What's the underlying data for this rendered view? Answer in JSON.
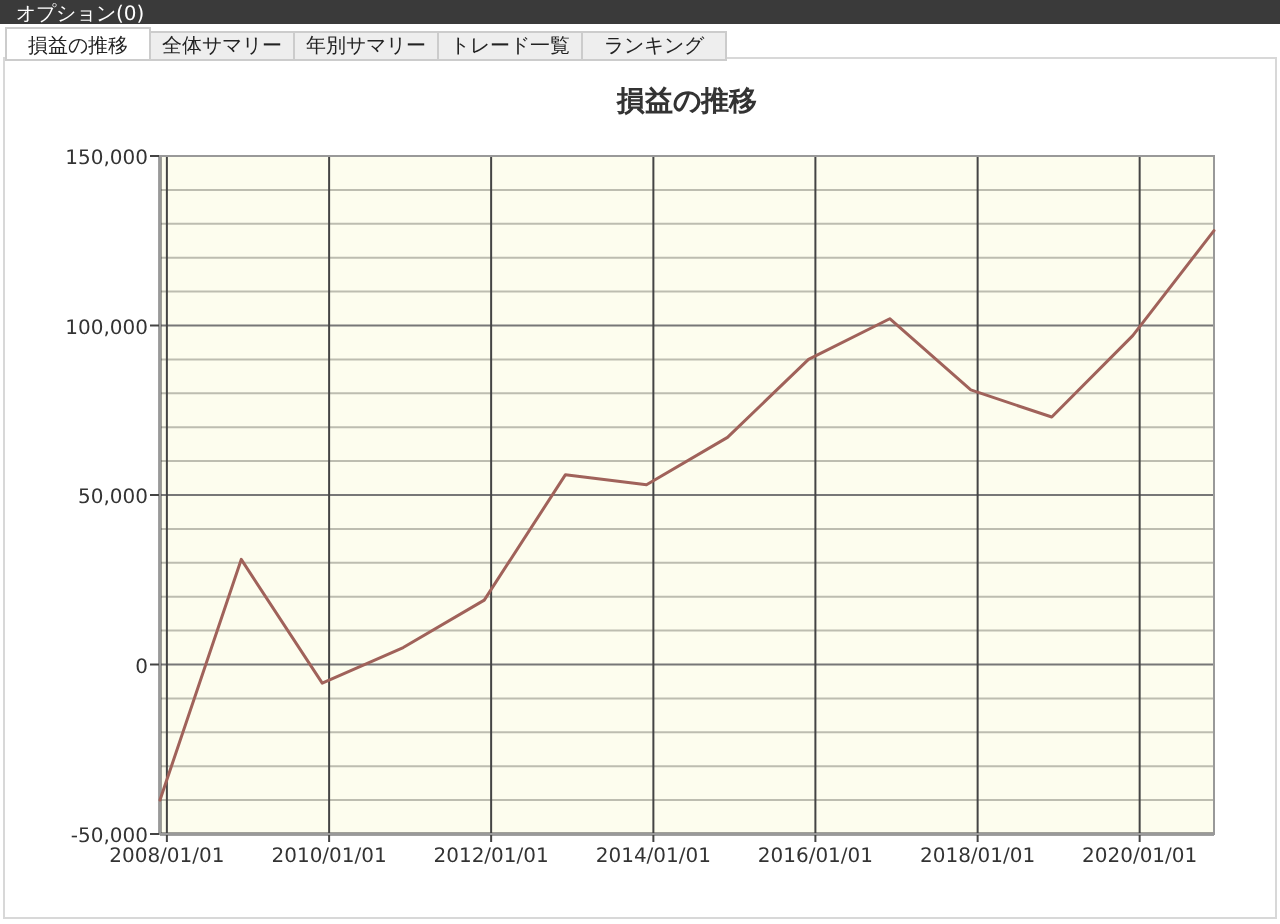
{
  "chart_data": {
    "type": "line",
    "title": "損益の推移",
    "annotations": [
      "オプション(0)",
      "損益の推移",
      "全体サマリー",
      "年別サマリー",
      "トレード一覧",
      "ランキング"
    ],
    "x": [
      "2007-12-01",
      "2008-12-01",
      "2009-12-01",
      "2010-12-01",
      "2011-12-01",
      "2012-12-01",
      "2013-12-01",
      "2014-12-01",
      "2015-12-01",
      "2016-12-01",
      "2017-12-01",
      "2018-12-01",
      "2019-12-01",
      "2020-12-01"
    ],
    "series": [
      {
        "color": "#a0625a",
        "values": [
          -40000,
          31000,
          -5500,
          5000,
          19000,
          56000,
          53000,
          67000,
          90000,
          102000,
          81000,
          73000,
          97000,
          128000
        ]
      }
    ],
    "xlim": [
      "2007-12-01",
      "2020-12-01"
    ],
    "xticks": [
      {
        "value": "2008-01-01",
        "label": "2008/01/01"
      },
      {
        "value": "2010-01-01",
        "label": "2010/01/01"
      },
      {
        "value": "2012-01-01",
        "label": "2012/01/01"
      },
      {
        "value": "2014-01-01",
        "label": "2014/01/01"
      },
      {
        "value": "2016-01-01",
        "label": "2016/01/01"
      },
      {
        "value": "2018-01-01",
        "label": "2018/01/01"
      },
      {
        "value": "2020-01-01",
        "label": "2020/01/01"
      }
    ],
    "ylim": [
      -50000,
      150000
    ],
    "yticks": [
      {
        "value": -50000,
        "label": "-50,000"
      },
      {
        "value": -40000,
        "label": null
      },
      {
        "value": -30000,
        "label": null
      },
      {
        "value": -20000,
        "label": null
      },
      {
        "value": -10000,
        "label": null
      },
      {
        "value": 0,
        "label": "0"
      },
      {
        "value": 10000,
        "label": null
      },
      {
        "value": 20000,
        "label": null
      },
      {
        "value": 30000,
        "label": null
      },
      {
        "value": 40000,
        "label": null
      },
      {
        "value": 50000,
        "label": "50,000"
      },
      {
        "value": 60000,
        "label": null
      },
      {
        "value": 70000,
        "label": null
      },
      {
        "value": 80000,
        "label": null
      },
      {
        "value": 90000,
        "label": null
      },
      {
        "value": 100000,
        "label": "100,000"
      },
      {
        "value": 110000,
        "label": null
      },
      {
        "value": 120000,
        "label": null
      },
      {
        "value": 130000,
        "label": null
      },
      {
        "value": 140000,
        "label": null
      },
      {
        "value": 150000,
        "label": "150,000"
      }
    ],
    "grid": true,
    "marker": "none",
    "line_style": "solid"
  }
}
